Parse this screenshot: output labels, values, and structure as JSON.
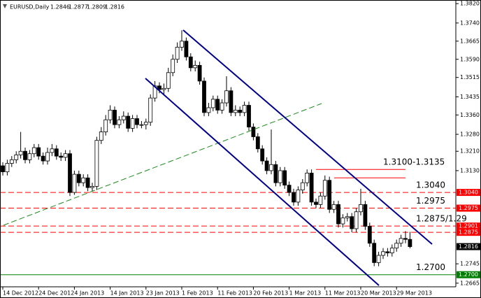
{
  "chart_data": {
    "type": "candlestick",
    "title": "EURUSD,Daily",
    "categories": [
      "14 Dec 2012",
      null,
      null,
      null,
      null,
      null,
      null,
      null,
      "24 Dec 2012",
      null,
      null,
      null,
      null,
      null,
      null,
      null,
      "4 Jan 2013",
      null,
      null,
      null,
      null,
      null,
      null,
      null,
      "14 Jan 2013",
      null,
      null,
      null,
      null,
      null,
      null,
      null,
      "23 Jan 2013",
      null,
      null,
      null,
      null,
      null,
      null,
      null,
      "1 Feb 2013",
      null,
      null,
      null,
      null,
      null,
      null,
      null,
      "11 Feb 2013",
      null,
      null,
      null,
      null,
      null,
      null,
      null,
      "20 Feb 2013",
      null,
      null,
      null,
      null,
      null,
      null,
      null,
      "1 Mar 2013",
      null,
      null,
      null,
      null,
      null,
      null,
      null,
      "11 Mar 2013",
      null,
      null,
      null,
      null,
      null,
      null,
      null,
      "20 Mar 2013",
      null,
      null,
      null,
      null,
      null,
      null,
      null,
      "29 Mar 2013",
      null,
      null,
      null
    ],
    "open": [
      1.315,
      1.3125,
      1.316,
      1.3175,
      1.3195,
      1.321,
      1.3175,
      1.32,
      1.3225,
      1.319,
      1.317,
      1.3205,
      1.322,
      1.319,
      1.3185,
      1.32,
      1.304,
      1.3115,
      1.308,
      1.31,
      1.306,
      1.3065,
      1.3255,
      1.329,
      1.334,
      1.338,
      1.332,
      1.334,
      1.3355,
      1.3305,
      1.3345,
      1.332,
      1.332,
      1.333,
      1.343,
      1.348,
      1.3465,
      1.347,
      1.3535,
      1.359,
      1.364,
      1.3665,
      1.36,
      1.3555,
      1.3565,
      1.35,
      1.337,
      1.339,
      1.3425,
      1.338,
      1.341,
      1.346,
      1.337,
      1.338,
      1.337,
      1.34,
      1.331,
      1.327,
      1.322,
      1.317,
      1.313,
      1.3155,
      1.308,
      1.313,
      1.307,
      1.304,
      1.3,
      1.305,
      1.308,
      1.312,
      1.3,
      1.299,
      1.3025,
      1.309,
      1.297,
      1.299,
      1.291,
      1.2935,
      1.294,
      1.289,
      1.296,
      1.299,
      1.29,
      1.283,
      1.275,
      1.278,
      1.2795,
      1.279,
      1.281,
      1.283,
      1.285,
      1.2846
    ],
    "high": [
      1.3165,
      1.3175,
      1.319,
      1.321,
      1.329,
      1.3225,
      1.3215,
      1.324,
      1.324,
      1.3205,
      1.3225,
      1.324,
      1.3235,
      1.3205,
      1.3215,
      1.3215,
      1.313,
      1.313,
      1.3115,
      1.3115,
      1.308,
      1.327,
      1.331,
      1.336,
      1.34,
      1.3395,
      1.3355,
      1.3375,
      1.337,
      1.336,
      1.336,
      1.3335,
      1.3345,
      1.3445,
      1.35,
      1.3495,
      1.349,
      1.3555,
      1.361,
      1.366,
      1.371,
      1.368,
      1.3615,
      1.3585,
      1.358,
      1.3515,
      1.341,
      1.344,
      1.344,
      1.3425,
      1.352,
      1.3475,
      1.34,
      1.3395,
      1.3415,
      1.3415,
      1.3325,
      1.3285,
      1.3235,
      1.3185,
      1.33,
      1.317,
      1.3145,
      1.3145,
      1.3085,
      1.3055,
      1.3065,
      1.3095,
      1.3135,
      1.3135,
      1.3015,
      1.304,
      1.311,
      1.3105,
      1.3005,
      1.3005,
      1.295,
      1.2955,
      1.2955,
      1.2975,
      1.3055,
      1.3005,
      1.2915,
      1.2845,
      1.2795,
      1.281,
      1.281,
      1.2825,
      1.2845,
      1.2865,
      1.288,
      1.2877
    ],
    "low": [
      1.311,
      1.311,
      1.3145,
      1.316,
      1.318,
      1.316,
      1.316,
      1.3185,
      1.3175,
      1.3155,
      1.3155,
      1.319,
      1.3175,
      1.317,
      1.317,
      1.3025,
      1.303,
      1.3065,
      1.3065,
      1.3045,
      1.3045,
      1.305,
      1.324,
      1.3275,
      1.3325,
      1.3305,
      1.3305,
      1.3325,
      1.329,
      1.329,
      1.3305,
      1.3305,
      1.33,
      1.3315,
      1.3415,
      1.345,
      1.3445,
      1.3455,
      1.352,
      1.3575,
      1.3625,
      1.3585,
      1.354,
      1.354,
      1.3485,
      1.3355,
      1.3355,
      1.3375,
      1.3365,
      1.3365,
      1.3395,
      1.3355,
      1.3355,
      1.3355,
      1.3355,
      1.3295,
      1.3255,
      1.3205,
      1.3155,
      1.3115,
      1.3115,
      1.3065,
      1.3065,
      1.3055,
      1.3025,
      1.2985,
      1.2985,
      1.3035,
      1.3065,
      1.2985,
      1.2975,
      1.2975,
      1.301,
      1.2955,
      1.2955,
      1.2895,
      1.2895,
      1.292,
      1.2875,
      1.2875,
      1.2945,
      1.2885,
      1.2815,
      1.2735,
      1.2735,
      1.2765,
      1.2775,
      1.2775,
      1.2795,
      1.2815,
      1.283,
      1.2809
    ],
    "close": [
      1.3125,
      1.316,
      1.3175,
      1.3195,
      1.321,
      1.3175,
      1.32,
      1.3225,
      1.319,
      1.317,
      1.3205,
      1.322,
      1.319,
      1.3185,
      1.32,
      1.304,
      1.3115,
      1.308,
      1.31,
      1.306,
      1.3065,
      1.3255,
      1.329,
      1.334,
      1.338,
      1.332,
      1.334,
      1.3355,
      1.3305,
      1.3345,
      1.332,
      1.332,
      1.333,
      1.343,
      1.348,
      1.3465,
      1.347,
      1.3535,
      1.359,
      1.364,
      1.3665,
      1.36,
      1.3555,
      1.3565,
      1.35,
      1.337,
      1.339,
      1.3425,
      1.338,
      1.341,
      1.346,
      1.337,
      1.338,
      1.337,
      1.34,
      1.331,
      1.327,
      1.322,
      1.317,
      1.313,
      1.3155,
      1.308,
      1.313,
      1.307,
      1.304,
      1.3,
      1.305,
      1.308,
      1.312,
      1.3,
      1.299,
      1.3025,
      1.309,
      1.297,
      1.299,
      1.291,
      1.2935,
      1.294,
      1.289,
      1.296,
      1.299,
      1.29,
      1.283,
      1.275,
      1.278,
      1.2795,
      1.279,
      1.281,
      1.283,
      1.285,
      1.2846,
      1.2816
    ],
    "up_color": "#ffffff",
    "down_color": "#000000",
    "ylim": [
      1.265,
      1.3835
    ],
    "yticks": [
      {
        "value": 1.382,
        "label": "1.3820"
      },
      {
        "value": 1.374,
        "label": "1.3740"
      },
      1.3665,
      {
        "value": 1.359,
        "label": "1.3590"
      },
      1.3515,
      1.3435,
      {
        "value": 1.336,
        "label": "1.3360"
      },
      {
        "value": 1.328,
        "label": "1.3280"
      },
      {
        "value": 1.321,
        "label": "1.3210"
      },
      {
        "value": 1.313,
        "label": "1.3130"
      },
      1.2745,
      1.2665
    ],
    "levels": [
      {
        "value": 1.3135,
        "color": "#ff0000",
        "style": "solid",
        "annotation": "1.3100-1.3135"
      },
      {
        "value": 1.31,
        "color": "#ff0000",
        "style": "solid"
      },
      {
        "value": 1.304,
        "label": "1.3040",
        "color": "#ff0000",
        "style": "dashed",
        "annotation": "1.3040"
      },
      {
        "value": 1.2975,
        "label": "1.2975",
        "color": "#ff0000",
        "style": "dashed",
        "annotation": "1.2975"
      },
      {
        "value": 1.2901,
        "label": "1.2901",
        "color": "#ff0000",
        "style": "dashed",
        "annotation": "1.2875/1.29"
      },
      {
        "value": 1.2875,
        "label": "1.2875",
        "color": "#ff0000",
        "style": "dashed"
      },
      {
        "value": 1.27,
        "label": "1.2700",
        "color": "#008000",
        "style": "solid",
        "annotation": "1.2700"
      }
    ]
  }
}
